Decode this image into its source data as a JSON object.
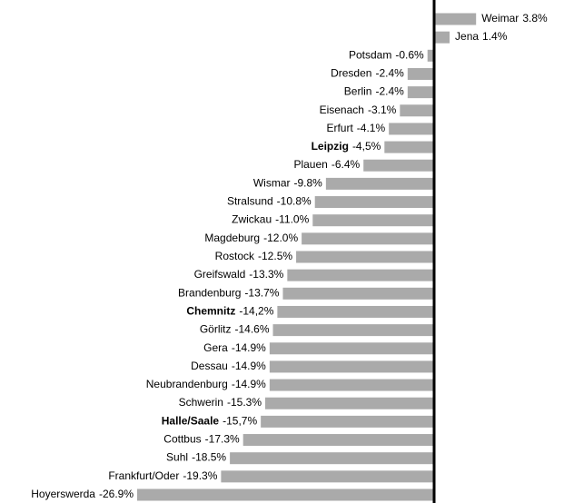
{
  "chart_data": {
    "type": "bar",
    "orientation": "horizontal",
    "color": "#aaaaaa",
    "axis_color": "#000000",
    "categories": [
      "Weimar",
      "Jena",
      "Potsdam",
      "Dresden",
      "Berlin",
      "Eisenach",
      "Erfurt",
      "Leipzig",
      "Plauen",
      "Wismar",
      "Stralsund",
      "Zwickau",
      "Magdeburg",
      "Rostock",
      "Greifswald",
      "Brandenburg",
      "Chemnitz",
      "Görlitz",
      "Gera",
      "Dessau",
      "Neubrandenburg",
      "Schwerin",
      "Halle/Saale",
      "Cottbus",
      "Suhl",
      "Frankfurt/Oder",
      "Hoyerswerda"
    ],
    "values": [
      3.8,
      1.4,
      -0.6,
      -2.4,
      -2.4,
      -3.1,
      -4.1,
      -4.5,
      -6.4,
      -9.8,
      -10.8,
      -11.0,
      -12.0,
      -12.5,
      -13.3,
      -13.7,
      -14.2,
      -14.6,
      -14.9,
      -14.9,
      -14.9,
      -15.3,
      -15.7,
      -17.3,
      -18.5,
      -19.3,
      -26.9
    ],
    "value_labels": [
      "3.8%",
      "1.4%",
      "-0.6%",
      "-2.4%",
      "-2.4%",
      "-3.1%",
      "-4.1%",
      "-4,5%",
      "-6.4%",
      "-9.8%",
      "-10.8%",
      "-11.0%",
      "-12.0%",
      "-12.5%",
      "-13.3%",
      "-13.7%",
      "-14,2%",
      "-14.6%",
      "-14.9%",
      "-14.9%",
      "-14.9%",
      "-15.3%",
      "-15,7%",
      "-17.3%",
      "-18.5%",
      "-19.3%",
      "-26.9%"
    ],
    "bold_indices": [
      7,
      16,
      22
    ]
  }
}
